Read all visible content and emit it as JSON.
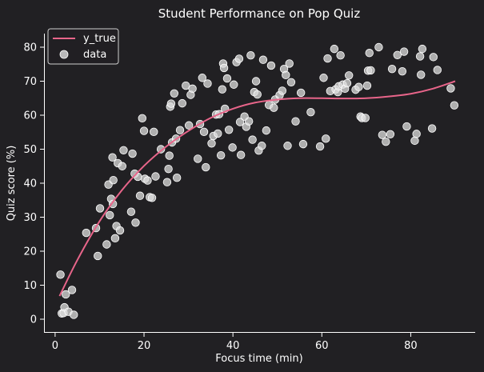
{
  "chart_data": {
    "type": "scatter",
    "title": "Student Performance on Pop Quiz",
    "xlabel": "Focus time (min)",
    "ylabel": "Quiz score (%)",
    "xlim": [
      -2.5,
      94.5
    ],
    "ylim": [
      -4,
      84
    ],
    "xticks": [
      0,
      20,
      40,
      60,
      80
    ],
    "yticks": [
      0,
      10,
      20,
      30,
      40,
      50,
      60,
      70,
      80
    ],
    "grid": false,
    "legend": {
      "position": "top-left",
      "entries": [
        "y_true",
        "data"
      ]
    },
    "colors": {
      "background": "#212023",
      "line": "#e8658a",
      "points": "#dedede",
      "text": "#ffffff"
    },
    "series": [
      {
        "name": "y_true",
        "kind": "line",
        "x": [
          1,
          5,
          10,
          15,
          20,
          25,
          30,
          35,
          40,
          45,
          50,
          55,
          60,
          65,
          70,
          75,
          80,
          85,
          90
        ],
        "y": [
          6.8,
          17.4,
          28.8,
          37.9,
          45.1,
          50.8,
          55.4,
          59.2,
          61.9,
          63.7,
          64.6,
          65.0,
          65.0,
          64.9,
          65.0,
          65.5,
          66.3,
          67.8,
          70.0
        ]
      },
      {
        "name": "data",
        "kind": "scatter",
        "points": [
          [
            1.2,
            13.1
          ],
          [
            1.5,
            1.7
          ],
          [
            1.9,
            1.8
          ],
          [
            2.1,
            3.5
          ],
          [
            2.4,
            7.3
          ],
          [
            3.0,
            2.2
          ],
          [
            3.8,
            8.6
          ],
          [
            4.2,
            1.3
          ],
          [
            7.0,
            25.4
          ],
          [
            9.2,
            26.8
          ],
          [
            9.6,
            18.6
          ],
          [
            10.1,
            32.6
          ],
          [
            11.6,
            22.0
          ],
          [
            12.0,
            39.6
          ],
          [
            12.3,
            30.6
          ],
          [
            12.6,
            35.4
          ],
          [
            12.9,
            47.6
          ],
          [
            13.0,
            33.9
          ],
          [
            13.1,
            40.9
          ],
          [
            13.5,
            23.8
          ],
          [
            13.8,
            27.4
          ],
          [
            14.1,
            45.9
          ],
          [
            14.6,
            26.1
          ],
          [
            15.1,
            45.0
          ],
          [
            15.4,
            49.7
          ],
          [
            17.1,
            31.6
          ],
          [
            17.4,
            48.7
          ],
          [
            17.9,
            42.8
          ],
          [
            18.1,
            28.4
          ],
          [
            18.6,
            41.9
          ],
          [
            19.1,
            36.3
          ],
          [
            19.6,
            59.1
          ],
          [
            20.0,
            55.4
          ],
          [
            20.2,
            41.3
          ],
          [
            20.8,
            40.8
          ],
          [
            21.3,
            35.9
          ],
          [
            21.8,
            35.7
          ],
          [
            22.2,
            55.1
          ],
          [
            22.6,
            42.0
          ],
          [
            23.8,
            50.0
          ],
          [
            25.2,
            40.3
          ],
          [
            25.5,
            44.2
          ],
          [
            25.7,
            48.1
          ],
          [
            25.9,
            62.5
          ],
          [
            26.1,
            63.4
          ],
          [
            26.3,
            52.0
          ],
          [
            26.8,
            66.4
          ],
          [
            27.2,
            53.1
          ],
          [
            27.4,
            41.6
          ],
          [
            28.1,
            55.6
          ],
          [
            28.6,
            63.5
          ],
          [
            29.4,
            68.7
          ],
          [
            30.1,
            57.0
          ],
          [
            30.5,
            66.0
          ],
          [
            30.9,
            67.8
          ],
          [
            32.1,
            47.2
          ],
          [
            32.6,
            57.4
          ],
          [
            33.1,
            71.0
          ],
          [
            33.5,
            55.1
          ],
          [
            33.9,
            44.7
          ],
          [
            34.3,
            69.3
          ],
          [
            35.2,
            51.7
          ],
          [
            35.6,
            53.9
          ],
          [
            36.2,
            60.2
          ],
          [
            36.6,
            54.6
          ],
          [
            36.9,
            60.3
          ],
          [
            37.3,
            48.2
          ],
          [
            37.6,
            67.6
          ],
          [
            37.8,
            75.2
          ],
          [
            38.0,
            73.9
          ],
          [
            38.2,
            61.9
          ],
          [
            38.7,
            70.8
          ],
          [
            39.1,
            55.7
          ],
          [
            39.9,
            50.5
          ],
          [
            40.2,
            69.0
          ],
          [
            40.8,
            75.6
          ],
          [
            41.4,
            76.6
          ],
          [
            41.6,
            58.0
          ],
          [
            41.8,
            48.3
          ],
          [
            42.6,
            59.6
          ],
          [
            43.0,
            56.6
          ],
          [
            43.6,
            58.2
          ],
          [
            44.0,
            77.6
          ],
          [
            44.4,
            52.8
          ],
          [
            44.8,
            66.8
          ],
          [
            45.2,
            70.0
          ],
          [
            45.5,
            66.1
          ],
          [
            45.8,
            49.6
          ],
          [
            46.5,
            51.0
          ],
          [
            46.8,
            76.3
          ],
          [
            47.5,
            55.5
          ],
          [
            48.1,
            63.0
          ],
          [
            48.6,
            74.6
          ],
          [
            49.2,
            62.2
          ],
          [
            49.5,
            64.6
          ],
          [
            50.5,
            65.9
          ],
          [
            51.1,
            67.2
          ],
          [
            51.5,
            73.6
          ],
          [
            51.9,
            71.8
          ],
          [
            52.3,
            51.0
          ],
          [
            52.7,
            75.2
          ],
          [
            53.1,
            69.7
          ],
          [
            54.1,
            58.2
          ],
          [
            55.3,
            66.6
          ],
          [
            55.8,
            51.5
          ],
          [
            57.5,
            60.9
          ],
          [
            59.6,
            50.8
          ],
          [
            60.4,
            71.0
          ],
          [
            60.9,
            53.1
          ],
          [
            61.3,
            76.7
          ],
          [
            61.9,
            67.1
          ],
          [
            62.8,
            79.5
          ],
          [
            63.1,
            67.6
          ],
          [
            63.6,
            66.8
          ],
          [
            63.8,
            68.5
          ],
          [
            64.2,
            77.6
          ],
          [
            64.7,
            69.0
          ],
          [
            65.2,
            67.8
          ],
          [
            65.7,
            69.4
          ],
          [
            66.1,
            71.7
          ],
          [
            67.6,
            67.5
          ],
          [
            68.3,
            68.3
          ],
          [
            68.7,
            59.6
          ],
          [
            69.0,
            59.2
          ],
          [
            69.8,
            59.2
          ],
          [
            70.2,
            68.7
          ],
          [
            70.4,
            73.1
          ],
          [
            70.7,
            78.3
          ],
          [
            71.0,
            73.2
          ],
          [
            72.8,
            80.0
          ],
          [
            73.6,
            54.2
          ],
          [
            74.4,
            52.2
          ],
          [
            75.4,
            54.4
          ],
          [
            75.8,
            73.6
          ],
          [
            77.0,
            77.7
          ],
          [
            78.1,
            72.9
          ],
          [
            78.5,
            78.7
          ],
          [
            79.1,
            56.7
          ],
          [
            80.9,
            52.5
          ],
          [
            81.3,
            54.5
          ],
          [
            82.1,
            77.3
          ],
          [
            82.3,
            71.9
          ],
          [
            82.6,
            79.5
          ],
          [
            84.8,
            56.1
          ],
          [
            85.1,
            77.1
          ],
          [
            86.0,
            73.3
          ],
          [
            89.0,
            67.9
          ],
          [
            89.8,
            62.9
          ]
        ]
      }
    ]
  }
}
